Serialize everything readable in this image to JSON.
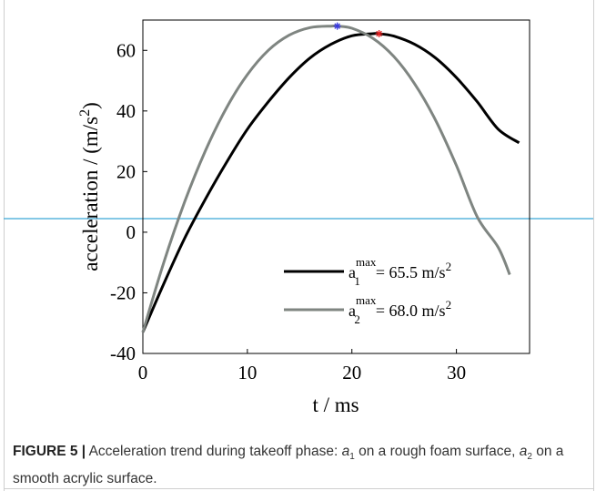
{
  "chart_data": {
    "type": "line",
    "xlabel": "t / ms",
    "ylabel": "acceleration / (m/s",
    "ylabel_sup": "2",
    "ylabel_close": ")",
    "xlim": [
      0,
      37
    ],
    "ylim": [
      -40,
      70
    ],
    "xticks": [
      0,
      10,
      20,
      30
    ],
    "yticks": [
      -40,
      -20,
      0,
      20,
      40,
      60
    ],
    "xtick_labels": [
      "0",
      "10",
      "20",
      "30"
    ],
    "ytick_labels": [
      "-40",
      "-20",
      "0",
      "20",
      "40",
      "60"
    ],
    "grid": false,
    "legend_position": "bottom-right",
    "series": [
      {
        "name": "a1",
        "label_base": "a",
        "label_sub": "1",
        "label_sup": "max",
        "label_value": "= 65.5 m/s",
        "label_unit_sup": "2",
        "color": "#000000",
        "x": [
          0,
          2,
          4,
          6,
          8,
          10,
          12,
          14,
          16,
          18,
          20,
          22,
          22.6,
          24,
          26,
          28,
          30,
          32,
          34,
          36
        ],
        "y": [
          -33,
          -17,
          -2,
          11,
          23,
          34,
          43,
          51,
          57.5,
          62,
          64.8,
          65.5,
          65.5,
          64.7,
          62,
          57.5,
          51,
          43,
          34,
          29.5
        ],
        "max_point": {
          "x": 22.6,
          "y": 65.5,
          "color": "#e02020"
        }
      },
      {
        "name": "a2",
        "label_base": "a",
        "label_sub": "2",
        "label_sup": "max",
        "label_value": "= 68.0 m/s",
        "label_unit_sup": "2",
        "color": "#7f8581",
        "x": [
          0,
          2,
          4,
          6,
          8,
          10,
          12,
          14,
          16,
          18,
          18.6,
          20,
          22,
          24,
          26,
          28,
          30,
          32,
          34,
          35.1
        ],
        "y": [
          -33,
          -10,
          10,
          27,
          41,
          52,
          60,
          65,
          67.5,
          68,
          68,
          67.3,
          64,
          58,
          49,
          37,
          22,
          5,
          -5,
          -14
        ],
        "max_point": {
          "x": 18.6,
          "y": 68.0,
          "color": "#3a3ae0"
        }
      }
    ]
  },
  "caption": {
    "label": "FIGURE 5 |",
    "part1": " Acceleration trend during takeoff phase: ",
    "var1": "a",
    "var1_sub": "1",
    "part2": " on a rough foam surface, ",
    "var2": "a",
    "var2_sub": "2",
    "part3": " on a smooth acrylic surface."
  }
}
